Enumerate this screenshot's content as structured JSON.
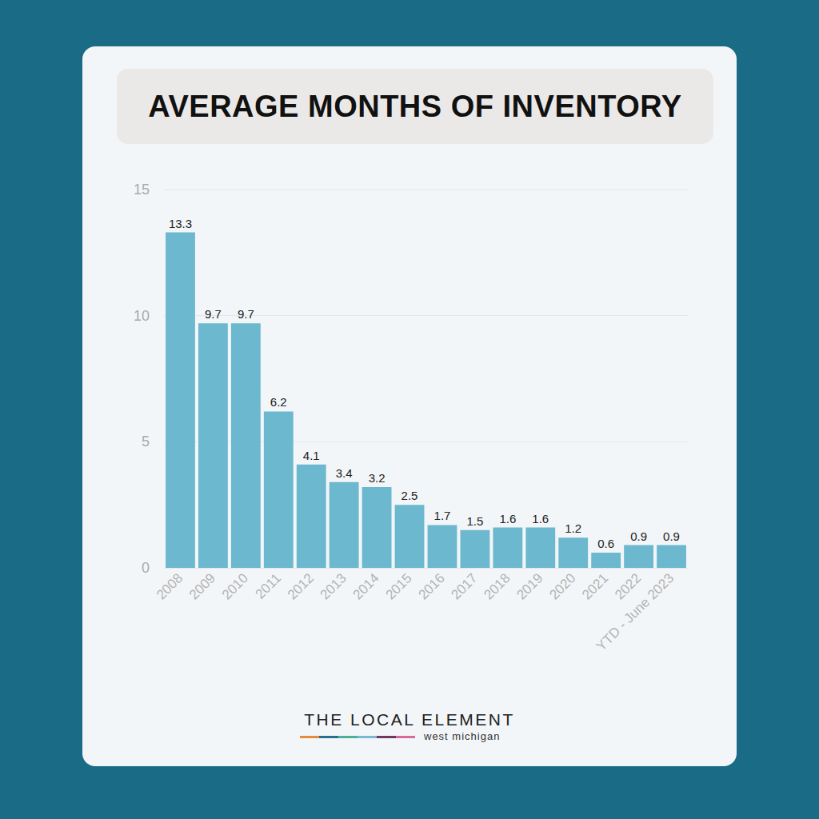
{
  "chart_data": {
    "type": "bar",
    "title": "AVERAGE MONTHS OF INVENTORY",
    "categories": [
      "2008",
      "2009",
      "2010",
      "2011",
      "2012",
      "2013",
      "2014",
      "2015",
      "2016",
      "2017",
      "2018",
      "2019",
      "2020",
      "2021",
      "2022",
      "YTD - June 2023"
    ],
    "values": [
      13.3,
      9.7,
      9.7,
      6.2,
      4.1,
      3.4,
      3.2,
      2.5,
      1.7,
      1.5,
      1.6,
      1.6,
      1.2,
      0.6,
      0.9,
      0.9
    ],
    "color": "#6cb8cf",
    "ylim": [
      0,
      15
    ],
    "yticks": [
      0,
      5,
      10,
      15
    ],
    "grid": true,
    "data_labels": true,
    "annotations": [
      "THE LOCAL ELEMENT",
      "west michigan"
    ]
  }
}
